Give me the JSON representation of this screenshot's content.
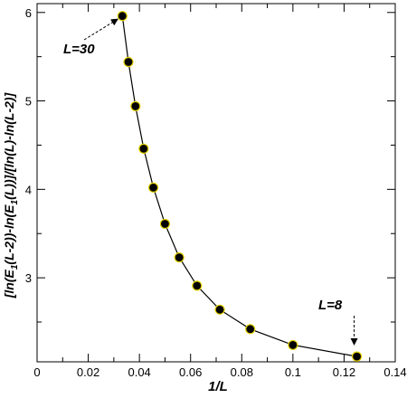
{
  "chart_data": {
    "type": "line",
    "xlabel": "1/L",
    "ylabel_parts": [
      "[ln(E",
      "1",
      "(L-2))-ln(E",
      "1",
      "(L))]/[ln(L)-ln(L-2)]"
    ],
    "xlim": [
      0,
      0.14
    ],
    "ylim": [
      2.05,
      6.1
    ],
    "xticks": [
      "0",
      "0.02",
      "0.04",
      "0.06",
      "0.08",
      "0.1",
      "0.12",
      "0.14"
    ],
    "xtick_values": [
      0,
      0.02,
      0.04,
      0.06,
      0.08,
      0.1,
      0.12,
      0.14
    ],
    "yticks": [
      "3",
      "4",
      "5",
      "6"
    ],
    "ytick_values": [
      3,
      4,
      5,
      6
    ],
    "series": [
      {
        "x": [
          0.03333,
          0.03571,
          0.03846,
          0.04167,
          0.04545,
          0.05,
          0.05556,
          0.0625,
          0.07143,
          0.08333,
          0.1,
          0.125
        ],
        "y": [
          5.96,
          5.44,
          4.94,
          4.46,
          4.02,
          3.61,
          3.23,
          2.91,
          2.64,
          2.42,
          2.24,
          2.11
        ]
      }
    ],
    "marker_color": "#000000",
    "marker_edge": "#e6d200",
    "line_color": "#000000",
    "annotations": [
      {
        "text": "L=30",
        "x": 0.03333,
        "y": 5.96
      },
      {
        "text": "L=8",
        "x": 0.125,
        "y": 2.11
      }
    ]
  }
}
